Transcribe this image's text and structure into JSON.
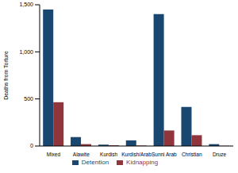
{
  "chart_data": {
    "type": "bar",
    "y_label": "Deaths from Torture",
    "categories": [
      "Mixed",
      "Alawite",
      "Kurdish",
      "Kurdish/Arab",
      "Sunni Arab",
      "Christian",
      "Druze"
    ],
    "series": [
      {
        "name": "Detention",
        "color": "#1a476f",
        "values": [
          1450,
          95,
          15,
          60,
          1400,
          415,
          20
        ]
      },
      {
        "name": "Kidnapping",
        "color": "#90353b",
        "values": [
          465,
          20,
          8,
          5,
          165,
          115,
          2
        ]
      }
    ],
    "ylim": [
      0,
      1500
    ],
    "yticks": [
      0,
      500,
      {
        "value": 1000,
        "label": "1,000"
      },
      {
        "value": 1500,
        "label": "1,500"
      }
    ],
    "grid": false,
    "legend": "bottom"
  }
}
